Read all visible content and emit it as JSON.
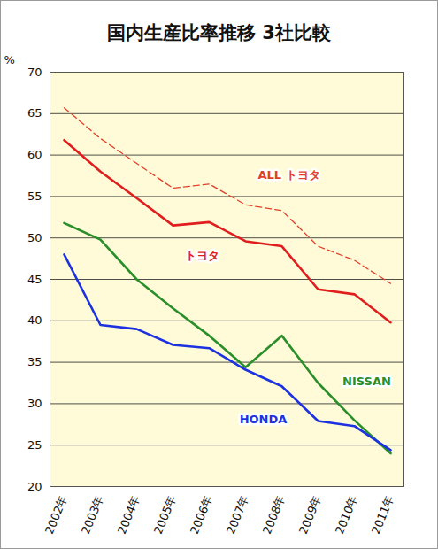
{
  "chart_data": {
    "type": "line",
    "title": "国内生産比率推移 3社比較",
    "y_label": "%",
    "categories": [
      "2002年",
      "2003年",
      "2004年",
      "2005年",
      "2006年",
      "2007年",
      "2008年",
      "2009年",
      "2010年",
      "2011年"
    ],
    "series": [
      {
        "name": "ALL トヨタ",
        "color": "#e0402a",
        "line_style": "dashed",
        "values": [
          65.7,
          62.0,
          59.0,
          56.0,
          56.5,
          54.0,
          53.3,
          49.0,
          47.3,
          44.5
        ]
      },
      {
        "name": "トヨタ",
        "color": "#e01e1e",
        "line_style": "solid",
        "values": [
          61.8,
          58.0,
          54.8,
          51.5,
          51.9,
          49.6,
          49.0,
          43.8,
          43.2,
          39.8
        ]
      },
      {
        "name": "NISSAN",
        "color": "#2a8f2a",
        "line_style": "solid",
        "values": [
          51.8,
          49.8,
          45.0,
          41.5,
          38.2,
          34.4,
          38.2,
          32.5,
          28.0,
          24.0
        ]
      },
      {
        "name": "HONDA",
        "color": "#1c32e0",
        "line_style": "solid",
        "values": [
          48.0,
          39.5,
          39.0,
          37.1,
          36.7,
          34.1,
          32.1,
          27.9,
          27.3,
          24.4
        ]
      }
    ],
    "ylim": [
      20,
      70
    ],
    "yticks": [
      20,
      25,
      30,
      35,
      40,
      45,
      50,
      55,
      60,
      65,
      70
    ],
    "grid": true
  }
}
